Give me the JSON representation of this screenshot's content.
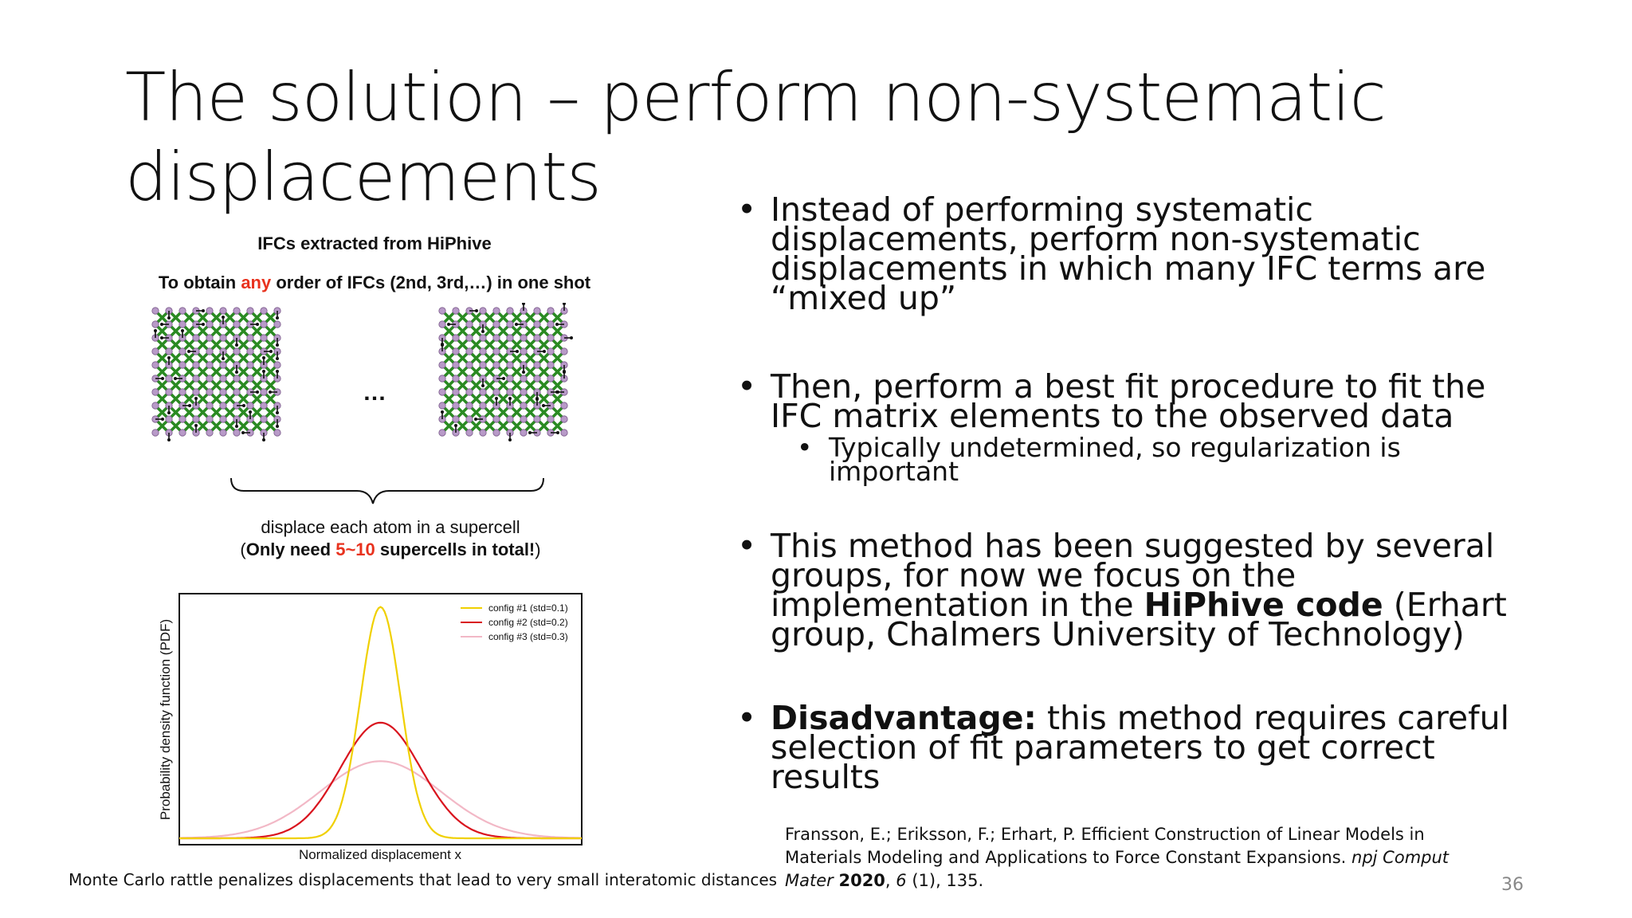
{
  "slide": {
    "title_line1": "The solution – perform non-systematic",
    "title_line2": "displacements",
    "page_number": "36"
  },
  "figure": {
    "heading": "IFCs extracted from HiPhive",
    "subheading_pre": "To obtain ",
    "subheading_highlight": "any",
    "subheading_post": " order of IFCs (2nd, 3rd,…) in one shot",
    "ellipsis": "…",
    "brace_line1": "displace each atom in a supercell",
    "brace_line2_open": "(",
    "brace_line2_bold_pre": "Only need ",
    "brace_line2_highlight": "5~10",
    "brace_line2_bold_post": " supercells in total!",
    "brace_line2_close": ")",
    "bottom_caption": "Monte Carlo rattle penalizes displacements that lead to very small interatomic distances",
    "colors": {
      "atom_green": "#2a8a22",
      "atom_purple": "#b89ac8",
      "highlight_red": "#e8321e"
    }
  },
  "chart_data": {
    "type": "line",
    "xlabel": "Normalized displacement x",
    "ylabel": "Probability density function (PDF)",
    "legend_position": "top-right",
    "grid": false,
    "series": [
      {
        "name": "config #1 (std=0.1)",
        "std": 0.1,
        "color": "#f0d000"
      },
      {
        "name": "config #2 (std=0.2)",
        "std": 0.2,
        "color": "#d9141e"
      },
      {
        "name": "config #3 (std=0.3)",
        "std": 0.3,
        "color": "#f2b8c6"
      }
    ]
  },
  "bullets": {
    "b1": "Instead of performing systematic displacements, perform non-systematic displacements in which many IFC terms are “mixed up”",
    "b2": "Then, perform a best fit procedure to fit the IFC matrix elements to the observed data",
    "b2_sub": "Typically undetermined, so regularization is important",
    "b3_pre": "This method has been suggested by several groups, for now we focus on the implementation in the ",
    "b3_bold": "HiPhive code",
    "b3_post": " (Erhart group, Chalmers University of Technology)",
    "b4_bold": "Disadvantage:",
    "b4_post": " this method requires careful selection of fit parameters to get correct results",
    "dot": "•",
    "subdot": "•"
  },
  "reference": {
    "authors": "Fransson, E.; Eriksson, F.; Erhart, P. Efficient Construction of Linear Models in Materials Modeling and Applications to Force Constant Expansions. ",
    "journal": "npj Comput Mater",
    "year": "2020",
    "volume": "6",
    "rest": " (1), 135."
  }
}
